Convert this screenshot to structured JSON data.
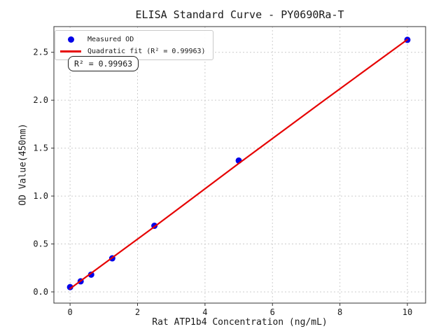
{
  "figure": {
    "title": "ELISA Standard Curve - PY0690Ra-T"
  },
  "chart_data": {
    "type": "scatter",
    "title": "ELISA Standard Curve - PY0690Ra-T",
    "xlabel": "Rat ATP1b4 Concentration (ng/mL)",
    "ylabel": "OD Value(450nm)",
    "xlim": [
      -0.48,
      10.54
    ],
    "ylim": [
      -0.117,
      2.768
    ],
    "xticks": [
      0,
      2,
      4,
      6,
      8,
      10
    ],
    "xtick_labels": [
      "0",
      "2",
      "4",
      "6",
      "8",
      "10"
    ],
    "yticks": [
      0,
      0.5,
      1.0,
      1.5,
      2.0,
      2.5
    ],
    "ytick_labels": [
      "0.0",
      "0.5",
      "1.0",
      "1.5",
      "2.0",
      "2.5"
    ],
    "grid": true,
    "grid_style": "dashed",
    "legend_position": "upper left",
    "r_squared": 0.99963,
    "series": [
      {
        "name": "Measured OD",
        "type": "scatter",
        "color": "#0202e8",
        "x": [
          0,
          0.313,
          0.625,
          1.25,
          2.5,
          5,
          10
        ],
        "y": [
          0.05,
          0.11,
          0.18,
          0.35,
          0.69,
          1.37,
          2.63
        ]
      },
      {
        "name": "Quadratic fit (R² = 0.99963)",
        "type": "line",
        "color": "#e60202",
        "x": [
          0,
          2.5,
          5,
          7.5,
          10
        ],
        "y": [
          0.034,
          0.68,
          1.34,
          1.99,
          2.633
        ]
      }
    ],
    "annotation": {
      "text": "R² = 0.99963"
    },
    "colors": {
      "grid": "#cccccc",
      "frame": "#333333",
      "text": "#1a1a1a",
      "background": "#ffffff"
    }
  }
}
